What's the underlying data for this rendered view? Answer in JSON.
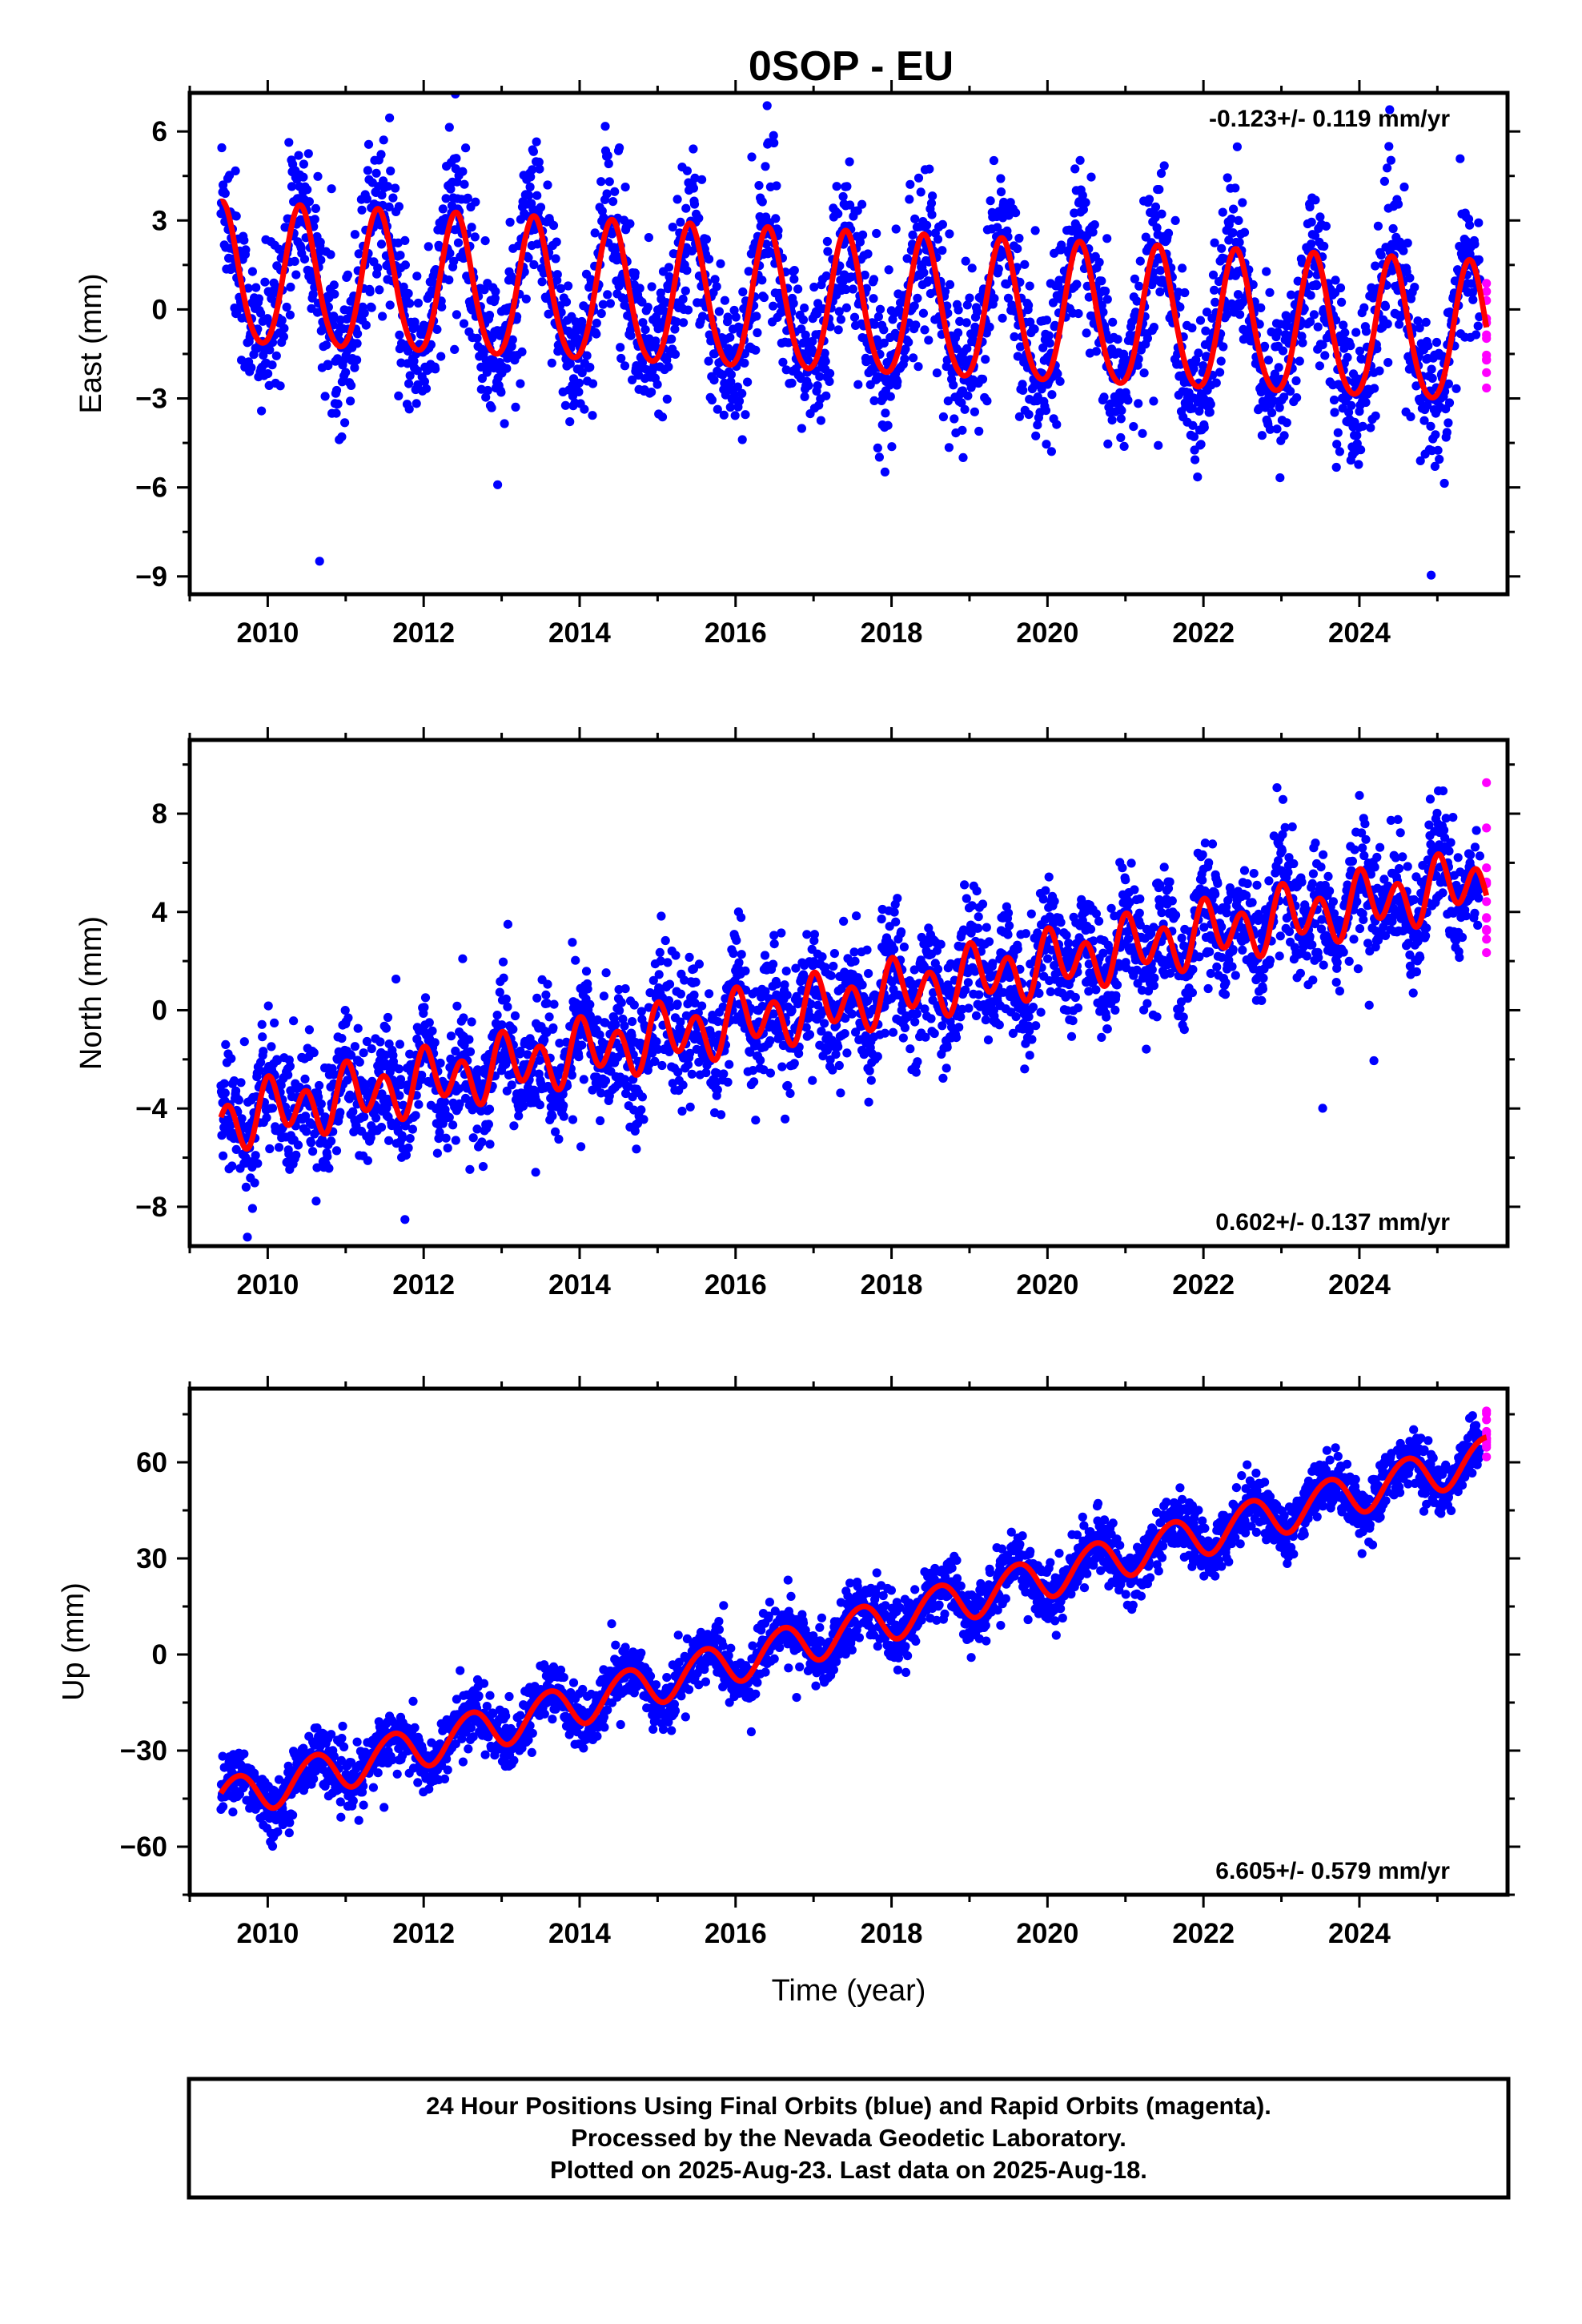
{
  "title": "0SOP - EU",
  "footer": {
    "line1": "24 Hour Positions Using Final Orbits (blue) and Rapid Orbits (magenta).",
    "line2": "Processed by the Nevada Geodetic Laboratory.",
    "line3": "Plotted on 2025-Aug-23. Last data on 2025-Aug-18."
  },
  "colors": {
    "final_orbits": "#0000ff",
    "rapid_orbits": "#ff00ff",
    "model_fit": "#ff0000",
    "frame": "#000000"
  },
  "chart_data": [
    {
      "type": "scatter",
      "ylabel": "East (mm)",
      "xlabel": "",
      "rate_text": "-0.123+/- 0.119 mm/yr",
      "rate_position": "top-right",
      "xlim": [
        2009.0,
        2025.9
      ],
      "ylim": [
        -9.6,
        7.3
      ],
      "x_ticks": [
        2010,
        2012,
        2014,
        2016,
        2018,
        2020,
        2022,
        2024
      ],
      "y_ticks": [
        6,
        3,
        0,
        -3,
        -6,
        -9
      ],
      "y_tick_labels": [
        "6",
        "3",
        "0",
        "−3",
        "−6",
        "−9"
      ],
      "data_start": 2009.4,
      "data_end": 2025.63,
      "rapid_start": 2025.55,
      "model": {
        "offset": 1.05,
        "trend_mm_per_yr": -0.123,
        "annual_amplitude": 2.35,
        "annual_peak": 0.42,
        "semiannual_amplitude": 0.25,
        "semiannual_peak": 0.4,
        "scatter_sigma": 1.3
      },
      "grid": false
    },
    {
      "type": "scatter",
      "ylabel": "North (mm)",
      "xlabel": "",
      "rate_text": "0.602+/- 0.137 mm/yr",
      "rate_position": "bottom-right",
      "xlim": [
        2009.0,
        2025.9
      ],
      "ylim": [
        -9.6,
        11.0
      ],
      "x_ticks": [
        2010,
        2012,
        2014,
        2016,
        2018,
        2020,
        2022,
        2024
      ],
      "y_ticks": [
        8,
        4,
        0,
        -4,
        -8
      ],
      "y_tick_labels": [
        "8",
        "4",
        "0",
        "−4",
        "−8"
      ],
      "data_start": 2009.4,
      "data_end": 2025.63,
      "rapid_start": 2025.55,
      "model": {
        "offset": -4.5,
        "trend_mm_per_yr": 0.602,
        "annual_amplitude": 0.55,
        "annual_peak": 0.1,
        "semiannual_amplitude": 1.0,
        "semiannual_peak": 0.0,
        "scatter_sigma": 1.2
      },
      "grid": false
    },
    {
      "type": "scatter",
      "ylabel": "Up (mm)",
      "xlabel": "Time (year)",
      "rate_text": "6.605+/- 0.579 mm/yr",
      "rate_position": "bottom-right",
      "xlim": [
        2009.0,
        2025.9
      ],
      "ylim": [
        -75,
        83
      ],
      "x_ticks": [
        2010,
        2012,
        2014,
        2016,
        2018,
        2020,
        2022,
        2024
      ],
      "y_ticks": [
        60,
        30,
        0,
        -30,
        -60
      ],
      "y_tick_labels": [
        "60",
        "30",
        "0",
        "−30",
        "−60"
      ],
      "data_start": 2009.4,
      "data_end": 2025.63,
      "rapid_start": 2025.55,
      "model": {
        "offset": -45.5,
        "trend_mm_per_yr": 6.605,
        "annual_amplitude": 6.5,
        "annual_peak": 0.6,
        "semiannual_amplitude": 0.5,
        "semiannual_peak": 0.3,
        "scatter_sigma": 4.5
      },
      "grid": false
    }
  ]
}
